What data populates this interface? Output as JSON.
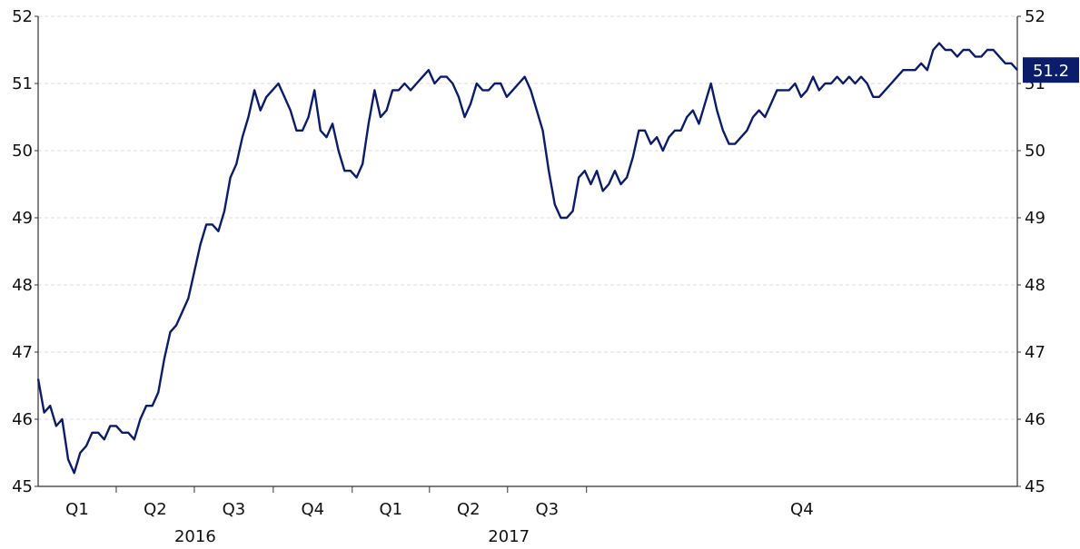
{
  "chart_data": {
    "type": "line",
    "title": "",
    "xlabel": "",
    "ylabel": "",
    "ylim": [
      45,
      52
    ],
    "yticks": [
      45,
      46,
      47,
      48,
      49,
      50,
      51,
      52
    ],
    "grid": true,
    "x_periods": [
      {
        "label": "Q1",
        "year": "2016"
      },
      {
        "label": "Q2",
        "year": "2016"
      },
      {
        "label": "Q3",
        "year": "2016"
      },
      {
        "label": "Q4",
        "year": "2016"
      },
      {
        "label": "Q1",
        "year": "2017"
      },
      {
        "label": "Q2",
        "year": "2017"
      },
      {
        "label": "Q3",
        "year": "2017"
      },
      {
        "label": "Q4",
        "year": "2017"
      }
    ],
    "years": [
      "2016",
      "2017"
    ],
    "last_value_label": "51.2",
    "colors": {
      "line": "#0b1c6b",
      "badge": "#0b1c6b",
      "grid": "#dddddd",
      "axis": "#333333"
    },
    "series": [
      {
        "color": "#0b1c6b",
        "x_start": "2016-01-01",
        "x_step_days": 7,
        "values": [
          46.6,
          46.1,
          46.2,
          45.9,
          46.0,
          45.4,
          45.2,
          45.5,
          45.6,
          45.8,
          45.8,
          45.7,
          45.9,
          45.9,
          45.8,
          45.8,
          45.7,
          46.0,
          46.2,
          46.2,
          46.4,
          46.9,
          47.3,
          47.4,
          47.6,
          47.8,
          48.2,
          48.6,
          48.9,
          48.9,
          48.8,
          49.1,
          49.6,
          49.8,
          50.2,
          50.5,
          50.9,
          50.6,
          50.8,
          50.9,
          51.0,
          50.8,
          50.6,
          50.3,
          50.3,
          50.5,
          50.9,
          50.3,
          50.2,
          50.4,
          50.0,
          49.7,
          49.7,
          49.6,
          49.8,
          50.4,
          50.9,
          50.5,
          50.6,
          50.9,
          50.9,
          51.0,
          50.9,
          51.0,
          51.1,
          51.2,
          51.0,
          51.1,
          51.1,
          51.0,
          50.8,
          50.5,
          50.7,
          51.0,
          50.9,
          50.9,
          51.0,
          51.0,
          50.8,
          50.9,
          51.0,
          51.1,
          50.9,
          50.6,
          50.3,
          49.7,
          49.2,
          49.0,
          49.0,
          49.1,
          49.6,
          49.7,
          49.5,
          49.7,
          49.4,
          49.5,
          49.7,
          49.5,
          49.6,
          49.9,
          50.3,
          50.3,
          50.1,
          50.2,
          50.0,
          50.2,
          50.3,
          50.3,
          50.5,
          50.6,
          50.4,
          50.7,
          51.0,
          50.6,
          50.3,
          50.1,
          50.1,
          50.2,
          50.3,
          50.5,
          50.6,
          50.5,
          50.7,
          50.9,
          50.9,
          50.9,
          51.0,
          50.8,
          50.9,
          51.1,
          50.9,
          51.0,
          51.0,
          51.1,
          51.0,
          51.1,
          51.0,
          51.1,
          51.0,
          50.8,
          50.8,
          50.9,
          51.0,
          51.1,
          51.2,
          51.2,
          51.2,
          51.3,
          51.2,
          51.5,
          51.6,
          51.5,
          51.5,
          51.4,
          51.5,
          51.5,
          51.4,
          51.4,
          51.5,
          51.5,
          51.4,
          51.3,
          51.3,
          51.2
        ]
      }
    ]
  }
}
